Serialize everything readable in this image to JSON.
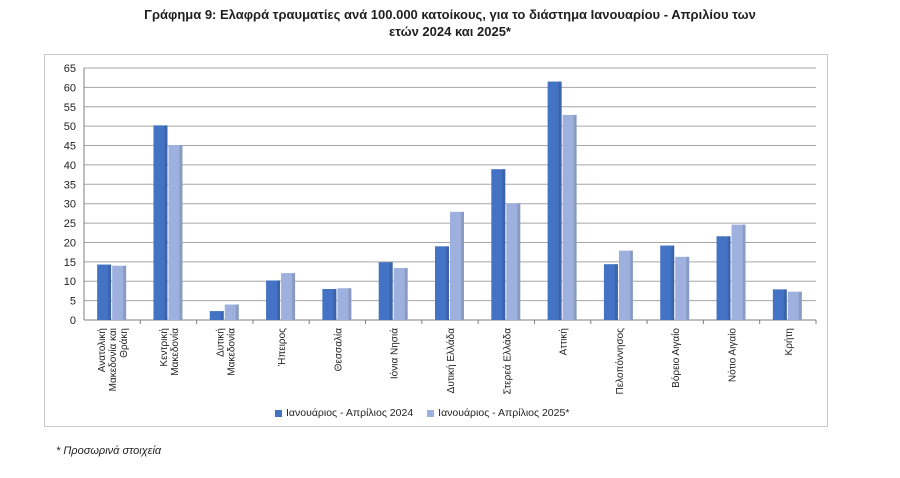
{
  "title": {
    "line1": "Γράφημα 9: Ελαφρά τραυματίες ανά 100.000 κατοίκους, για το διάστημα Ιανουαρίου - Απριλίου των",
    "line2": "ετών 2024 και 2025*"
  },
  "footnote": "* Προσωρινά στοιχεία",
  "colors": {
    "series1": "#4472c4",
    "series2": "#9eb1de",
    "grid": "#a6a6a6",
    "axis": "#7f7f7f"
  },
  "chart_data": {
    "type": "bar",
    "categories": [
      [
        "Ανατολική",
        "Μακεδονία και",
        "Θράκη"
      ],
      [
        "Κεντρική",
        "Μακεδονία"
      ],
      [
        "Δυτική",
        "Μακεδονία"
      ],
      [
        "Ήπειρος"
      ],
      [
        "Θεσσαλία"
      ],
      [
        "Ιόνια Νησιά"
      ],
      [
        "Δυτική Ελλάδα"
      ],
      [
        "Στερεά Ελλάδα"
      ],
      [
        "Αττική"
      ],
      [
        "Πελοπόννησος"
      ],
      [
        "Βόρειο Αιγαίο"
      ],
      [
        "Νότιο Αιγαίο"
      ],
      [
        "Κρήτη"
      ]
    ],
    "series": [
      {
        "name": "Ιανουάριος - Απρίλιος 2024",
        "values": [
          14.3,
          50.2,
          2.3,
          10.2,
          8.0,
          14.9,
          19.0,
          38.9,
          61.5,
          14.4,
          19.2,
          21.6,
          7.9
        ]
      },
      {
        "name": "Ιανουάριος - Απρίλιος 2025*",
        "values": [
          14.0,
          45.1,
          4.0,
          12.1,
          8.2,
          13.4,
          27.9,
          30.1,
          52.9,
          17.9,
          16.3,
          24.6,
          7.3
        ]
      }
    ],
    "ylim": [
      0,
      65
    ],
    "yticks": [
      0,
      5,
      10,
      15,
      20,
      25,
      30,
      35,
      40,
      45,
      50,
      55,
      60,
      65
    ],
    "grid": true,
    "legend": "bottom"
  }
}
